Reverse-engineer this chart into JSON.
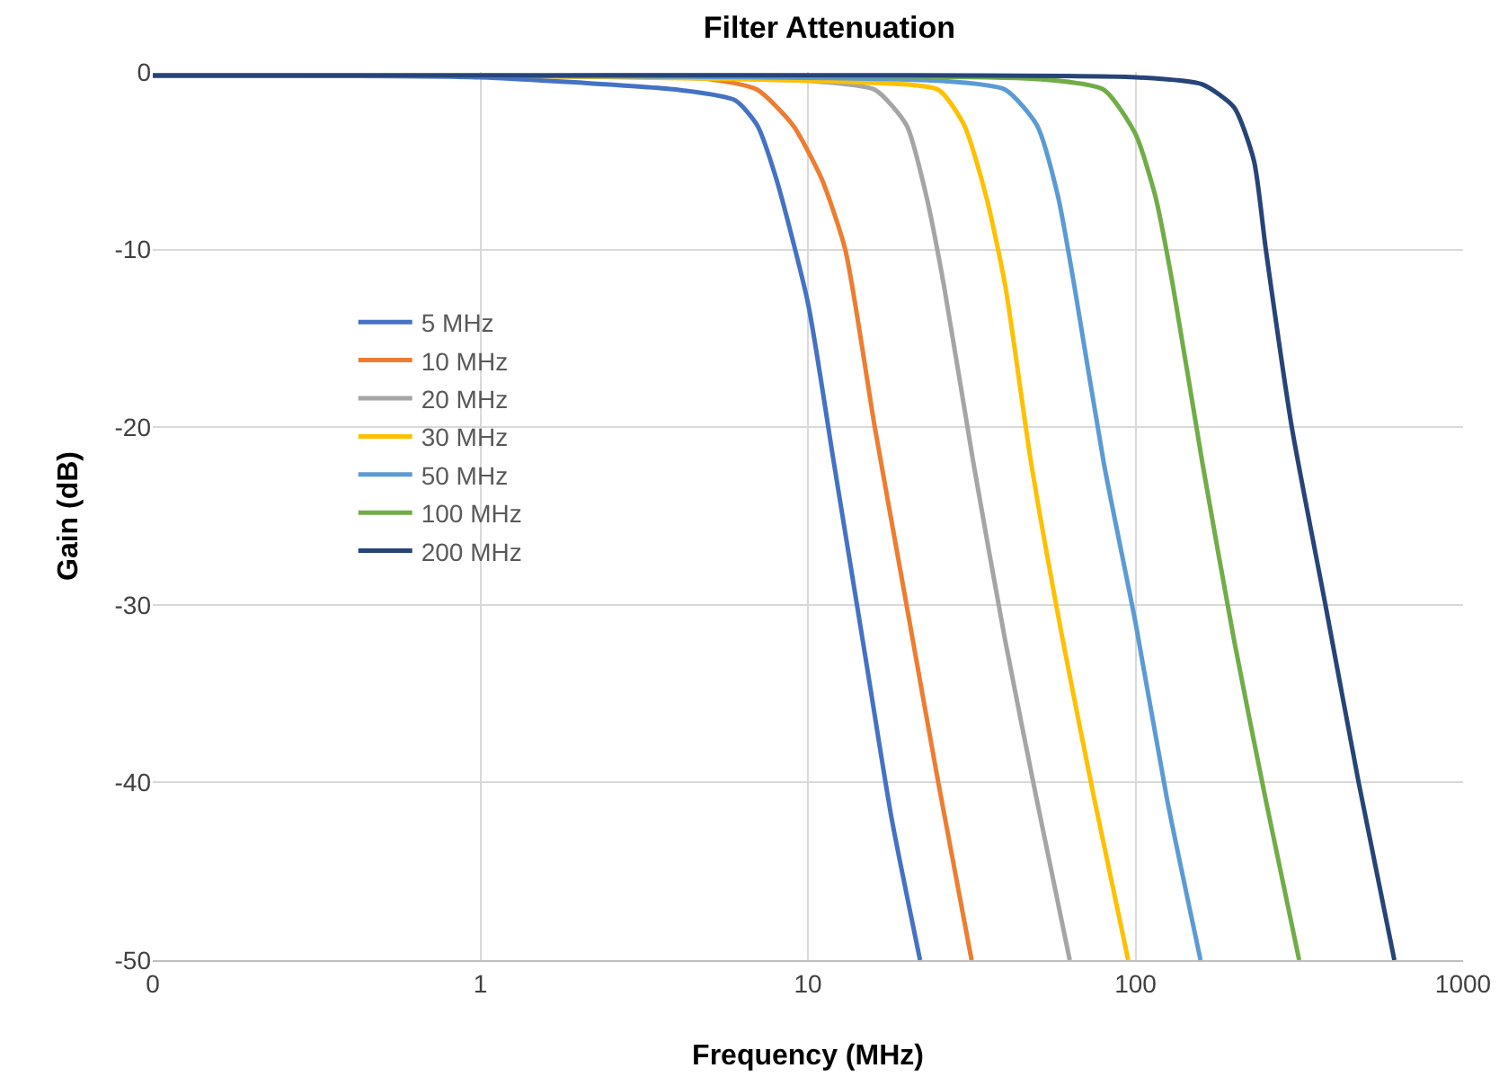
{
  "chart_data": {
    "type": "line",
    "title": "Filter Attenuation",
    "xlabel": "Frequency (MHz)",
    "ylabel": "Gain (dB)",
    "log": "x",
    "xlim": [
      0.1,
      1000
    ],
    "xticks": [
      {
        "value": 0.1,
        "label": "0"
      },
      1,
      10,
      100,
      1000
    ],
    "ylim": [
      -50,
      0
    ],
    "yticks": [
      0,
      -10,
      -20,
      -30,
      -40,
      -50
    ],
    "grid": true,
    "legend": "left",
    "marker": "none",
    "line_style": "solid",
    "series": [
      {
        "name": "5 MHz",
        "color": "#4472c4",
        "x": [
          0.1,
          1,
          2,
          4,
          6,
          7,
          8,
          10,
          12,
          15,
          18,
          22
        ],
        "values": [
          -0.2,
          -0.3,
          -0.6,
          -1.0,
          -1.6,
          -3,
          -6,
          -13,
          -22,
          -33,
          -42,
          -50
        ]
      },
      {
        "name": "10 MHz",
        "color": "#ed7d31",
        "x": [
          0.1,
          1,
          5,
          7,
          9,
          11,
          13,
          16,
          20,
          25,
          31.6
        ],
        "values": [
          -0.2,
          -0.2,
          -0.4,
          -1,
          -3,
          -6,
          -10,
          -20,
          -30,
          -40,
          -50
        ]
      },
      {
        "name": "20 MHz",
        "color": "#a5a5a5",
        "x": [
          0.1,
          1,
          10,
          16,
          20,
          23,
          26,
          32,
          40,
          50,
          63
        ],
        "values": [
          -0.2,
          -0.2,
          -0.5,
          -1,
          -3,
          -7,
          -12,
          -22,
          -32,
          -41,
          -50
        ]
      },
      {
        "name": "30 MHz",
        "color": "#ffc000",
        "x": [
          0.1,
          1,
          15,
          25,
          30,
          35,
          40,
          48,
          60,
          75,
          95
        ],
        "values": [
          -0.2,
          -0.2,
          -0.6,
          -1,
          -3,
          -7,
          -12,
          -22,
          -32,
          -41,
          -50
        ]
      },
      {
        "name": "50 MHz",
        "color": "#5b9bd5",
        "x": [
          0.1,
          1,
          25,
          40,
          50,
          58,
          65,
          80,
          100,
          125,
          158
        ],
        "values": [
          -0.2,
          -0.2,
          -0.5,
          -1,
          -3,
          -7,
          -12,
          -22,
          -31,
          -41,
          -50
        ]
      },
      {
        "name": "100 MHz",
        "color": "#70ad47",
        "x": [
          0.1,
          1,
          50,
          80,
          100,
          115,
          130,
          160,
          200,
          250,
          316
        ],
        "values": [
          -0.2,
          -0.2,
          -0.4,
          -1,
          -3.5,
          -7,
          -12,
          -22,
          -32,
          -41,
          -50
        ]
      },
      {
        "name": "200 MHz",
        "color": "#264478",
        "x": [
          0.1,
          1,
          100,
          160,
          200,
          230,
          250,
          300,
          380,
          480,
          617
        ],
        "values": [
          -0.2,
          -0.2,
          -0.3,
          -0.7,
          -2,
          -5,
          -10,
          -20,
          -30,
          -40,
          -50
        ]
      }
    ]
  }
}
